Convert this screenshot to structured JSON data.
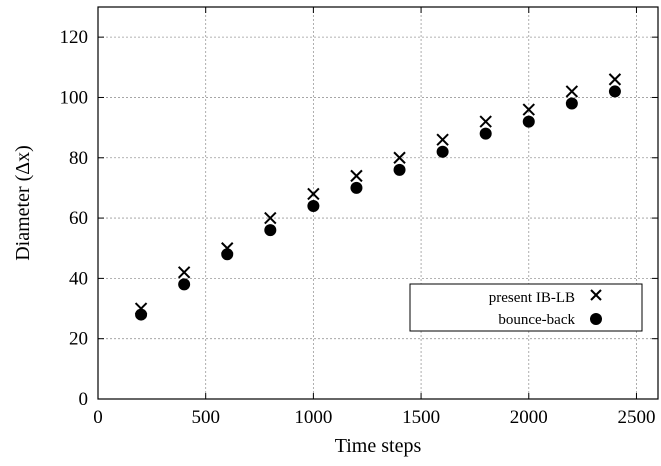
{
  "chart_data": {
    "type": "scatter",
    "title": "",
    "xlabel": "Time steps",
    "ylabel": "Diameter (Δx)",
    "xlim": [
      0,
      2600
    ],
    "ylim": [
      0,
      130
    ],
    "xticks": [
      "0",
      "500",
      "1000",
      "1500",
      "2000",
      "2500"
    ],
    "yticks": [
      "0",
      "20",
      "40",
      "60",
      "80",
      "100",
      "120"
    ],
    "grid": true,
    "legend_position": "lower-right",
    "series": [
      {
        "name": "present IB-LB",
        "marker": "cross",
        "color": "#000000",
        "x": [
          200,
          400,
          600,
          800,
          1000,
          1200,
          1400,
          1600,
          1800,
          2000,
          2200,
          2400
        ],
        "y": [
          30,
          42,
          50,
          60,
          68,
          74,
          80,
          86,
          92,
          96,
          102,
          106
        ]
      },
      {
        "name": "bounce-back",
        "marker": "filled-circle",
        "color": "#000000",
        "x": [
          200,
          400,
          600,
          800,
          1000,
          1200,
          1400,
          1600,
          1800,
          2000,
          2200,
          2400
        ],
        "y": [
          28,
          38,
          48,
          56,
          64,
          70,
          76,
          82,
          88,
          92,
          98,
          102
        ]
      }
    ]
  }
}
